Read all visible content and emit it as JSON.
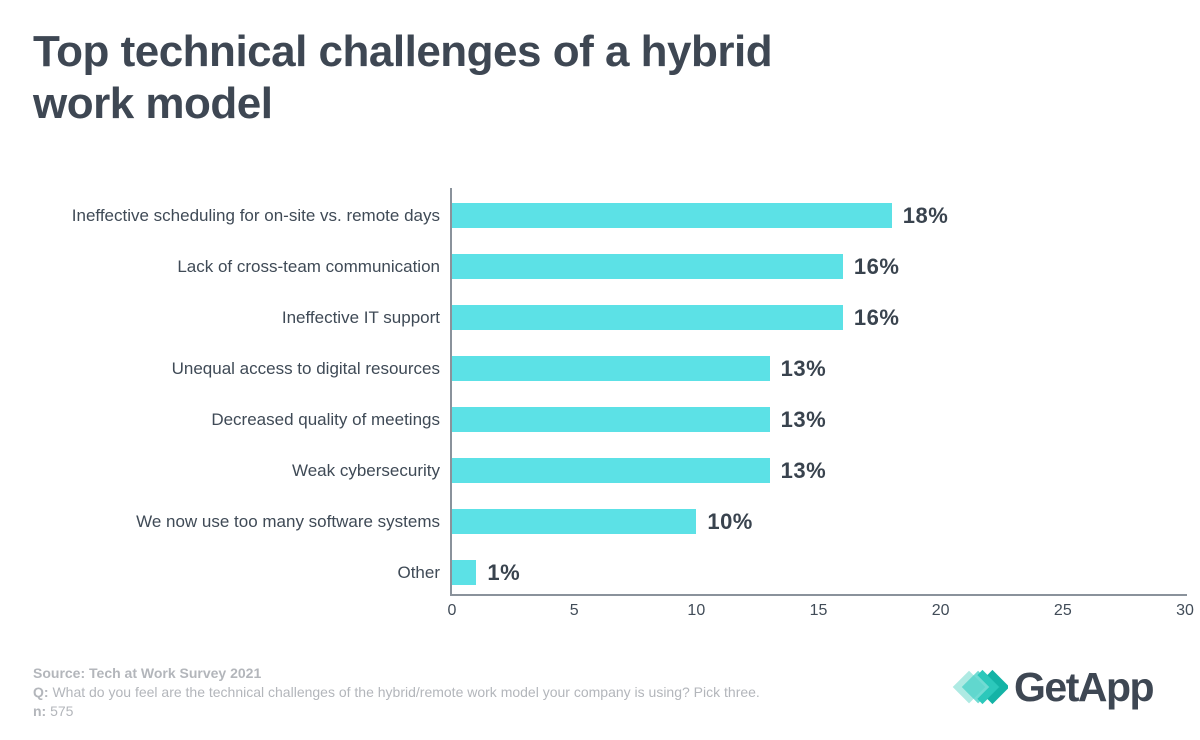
{
  "header": {
    "title_line1": "Top technical challenges of a hybrid",
    "title_line2": "work model"
  },
  "chart_data": {
    "type": "bar",
    "orientation": "horizontal",
    "title": "Top technical challenges of a hybrid work model",
    "categories": [
      "Ineffective scheduling for on-site vs. remote days",
      "Lack of cross-team communication",
      "Ineffective IT support",
      "Unequal access to digital resources",
      "Decreased quality of meetings",
      "Weak cybersecurity",
      "We now use too many software systems",
      "Other"
    ],
    "values": [
      18,
      16,
      16,
      13,
      13,
      13,
      10,
      1
    ],
    "value_labels": [
      "18%",
      "16%",
      "16%",
      "13%",
      "13%",
      "13%",
      "10%",
      "1%"
    ],
    "xlabel": "",
    "ylabel": "",
    "xlim": [
      0,
      30
    ],
    "xticks": [
      0,
      5,
      10,
      15,
      20,
      25,
      30
    ],
    "grid": false,
    "legend": false,
    "bar_color": "#5ce1e6"
  },
  "footer": {
    "source": "Source: Tech at Work Survey 2021",
    "q_label": "Q:",
    "q_text": " What do you feel are the technical challenges of the hybrid/remote work model your company is using? Pick three.",
    "n_label": "n:",
    "n_text": " 575"
  },
  "logo": {
    "text": "GetApp"
  },
  "colors": {
    "bar": "#5ce1e6",
    "title_text": "#3e4753",
    "axis": "#8a929b",
    "footer_text": "#b3b6bb",
    "logo_diamond_light": "#aeeae3",
    "logo_diamond_mid": "#4ed2c8",
    "logo_chevron_1": "#2cc8bb",
    "logo_chevron_2": "#14b3a6"
  }
}
